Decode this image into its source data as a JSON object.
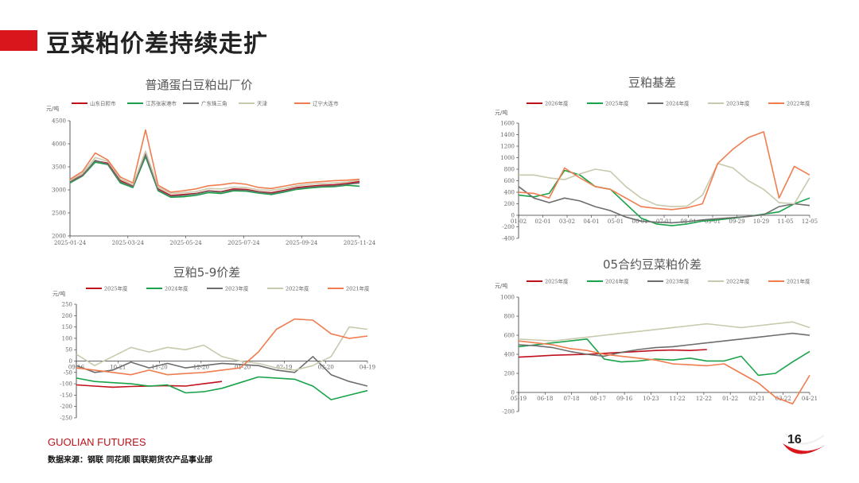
{
  "page": {
    "title": "豆菜粕价差持续走扩",
    "brand": "GUOLIAN FUTURES",
    "source": "数据来源：钢联  同花顺  国联期货农产品事业部",
    "page_number": "16"
  },
  "chart_data": [
    {
      "type": "line",
      "title": "普通蛋白豆粕出厂价",
      "unit": "元/吨",
      "ylim": [
        2000,
        4500
      ],
      "yticks": [
        2000,
        2500,
        3000,
        3500,
        4000,
        4500
      ],
      "x": [
        "2025-01-24",
        "2025-02-08",
        "2025-02-24",
        "2025-03-11",
        "2025-03-24",
        "2025-04-08",
        "2025-04-24",
        "2025-05-09",
        "2025-05-24",
        "2025-06-08",
        "2025-06-24",
        "2025-07-09",
        "2025-07-24",
        "2025-08-08",
        "2025-08-24",
        "2025-09-09",
        "2025-09-24",
        "2025-10-09",
        "2025-10-24",
        "2025-11-08",
        "2025-11-24",
        "2025-12-09",
        "2025-12-24",
        "2026-01-08"
      ],
      "xticks": [
        "2025-01-24",
        "2025-03-24",
        "2025-05-24",
        "2025-07-24",
        "2025-09-24",
        "2025-11-24"
      ],
      "grid": false,
      "legend": "top",
      "series": [
        {
          "name": "山东日照市",
          "color": "#c0101b",
          "values": [
            3180,
            3320,
            3630,
            3580,
            3200,
            3080,
            3780,
            3020,
            2880,
            2900,
            2920,
            2980,
            2960,
            3020,
            3010,
            2960,
            2940,
            2990,
            3050,
            3080,
            3100,
            3110,
            3140,
            3180
          ]
        },
        {
          "name": "江苏张家港市",
          "color": "#1aa34a",
          "values": [
            3150,
            3300,
            3600,
            3550,
            3150,
            3050,
            3720,
            2980,
            2840,
            2850,
            2880,
            2940,
            2920,
            2980,
            2970,
            2930,
            2900,
            2950,
            3010,
            3040,
            3060,
            3070,
            3100,
            3080
          ]
        },
        {
          "name": "广东珠三角",
          "color": "#6d6d6d",
          "values": [
            3170,
            3310,
            3640,
            3560,
            3180,
            3070,
            3760,
            3000,
            2860,
            2880,
            2910,
            2970,
            2950,
            3000,
            2990,
            2950,
            2920,
            2970,
            3030,
            3060,
            3080,
            3090,
            3120,
            3150
          ]
        },
        {
          "name": "天津",
          "color": "#c9c9ae",
          "values": [
            3200,
            3360,
            3700,
            3620,
            3240,
            3110,
            3840,
            3060,
            2920,
            2940,
            2960,
            3030,
            3020,
            3060,
            3050,
            3000,
            2990,
            3030,
            3090,
            3120,
            3140,
            3150,
            3170,
            3210
          ]
        },
        {
          "name": "辽宁大连市",
          "color": "#f07d4f",
          "values": [
            3230,
            3400,
            3800,
            3650,
            3280,
            3150,
            4300,
            3100,
            2950,
            2980,
            3020,
            3090,
            3110,
            3150,
            3120,
            3050,
            3030,
            3080,
            3130,
            3160,
            3180,
            3200,
            3210,
            3230
          ]
        }
      ]
    },
    {
      "type": "line",
      "title": "豆粕基差",
      "unit": "元/吨",
      "ylim": [
        -400,
        1600
      ],
      "yticks": [
        -400,
        -200,
        0,
        200,
        400,
        600,
        800,
        1000,
        1200,
        1400,
        1600
      ],
      "x": [
        "01-01",
        "01-20",
        "02-08",
        "02-27",
        "03-18",
        "04-06",
        "04-25",
        "05-14",
        "06-02",
        "06-21",
        "07-10",
        "07-29",
        "08-17",
        "09-05",
        "09-24",
        "10-13",
        "11-01",
        "11-20",
        "12-09",
        "12-28"
      ],
      "xticks": [
        "01-02",
        "02-01",
        "03-02",
        "04-01",
        "05-01",
        "06-01",
        "07-01",
        "08-01",
        "09-01",
        "09-29",
        "10-29",
        "11-05",
        "12-05"
      ],
      "grid": false,
      "legend": "top",
      "series": [
        {
          "name": "2026年度",
          "color": "#c0101b",
          "values": [
            null,
            null,
            null,
            null,
            null,
            null,
            null,
            null,
            null,
            null,
            null,
            null,
            null,
            null,
            null,
            null,
            null,
            null,
            null,
            null
          ]
        },
        {
          "name": "2025年度",
          "color": "#1aa34a",
          "values": [
            350,
            320,
            380,
            780,
            700,
            500,
            450,
            200,
            -50,
            -150,
            -180,
            -150,
            -100,
            -80,
            -50,
            -20,
            20,
            60,
            200,
            300
          ]
        },
        {
          "name": "2024年度",
          "color": "#6d6d6d",
          "values": [
            500,
            300,
            220,
            300,
            250,
            150,
            80,
            -30,
            -100,
            -120,
            -130,
            -110,
            -80,
            -60,
            -40,
            -20,
            10,
            150,
            200,
            170
          ]
        },
        {
          "name": "2023年度",
          "color": "#c9c9ae",
          "values": [
            700,
            700,
            650,
            620,
            720,
            800,
            760,
            500,
            300,
            180,
            150,
            160,
            350,
            900,
            820,
            600,
            450,
            220,
            200,
            650
          ]
        },
        {
          "name": "2022年度",
          "color": "#f07d4f",
          "values": [
            400,
            380,
            300,
            820,
            650,
            500,
            450,
            300,
            150,
            120,
            100,
            130,
            200,
            900,
            1150,
            1350,
            1450,
            300,
            850,
            700
          ]
        }
      ]
    },
    {
      "type": "line",
      "title": "豆粕5-9价差",
      "unit": "元/吨",
      "ylim": [
        -250,
        250
      ],
      "yticks": [
        -250,
        -200,
        -150,
        -100,
        -50,
        0,
        50,
        100,
        150,
        200,
        250
      ],
      "x": [
        "09-16",
        "09-30",
        "10-14",
        "10-28",
        "11-11",
        "11-25",
        "12-09",
        "12-23",
        "01-06",
        "01-20",
        "02-03",
        "02-17",
        "03-03",
        "03-17",
        "03-31",
        "04-14",
        "04-28"
      ],
      "xticks": [
        "09-16",
        "10-21",
        "11-20",
        "12-20",
        "01-20",
        "02-19",
        "03-20",
        "04-19"
      ],
      "grid": false,
      "legend": "top",
      "series": [
        {
          "name": "2025年度",
          "color": "#c0101b",
          "values": [
            -105,
            -110,
            -115,
            -112,
            -110,
            -108,
            -110,
            -100,
            -90,
            null,
            null,
            null,
            null,
            null,
            null,
            null,
            null
          ]
        },
        {
          "name": "2024年度",
          "color": "#1aa34a",
          "values": [
            -75,
            -90,
            -95,
            -100,
            -110,
            -105,
            -140,
            -135,
            -120,
            -95,
            -70,
            -75,
            -80,
            -110,
            -170,
            -150,
            -130
          ]
        },
        {
          "name": "2023年度",
          "color": "#6d6d6d",
          "values": [
            -20,
            -50,
            -40,
            -5,
            -30,
            -10,
            -30,
            -20,
            -10,
            -15,
            -20,
            -40,
            -50,
            20,
            -60,
            -90,
            -110
          ]
        },
        {
          "name": "2022年度",
          "color": "#c9c9ae",
          "values": [
            30,
            -20,
            20,
            60,
            40,
            60,
            50,
            70,
            20,
            0,
            -10,
            -30,
            -40,
            -20,
            20,
            150,
            140
          ]
        },
        {
          "name": "2021年度",
          "color": "#f07d4f",
          "values": [
            -30,
            -40,
            -50,
            -60,
            -40,
            -60,
            -55,
            -50,
            -40,
            -30,
            40,
            140,
            185,
            180,
            120,
            100,
            110
          ]
        }
      ]
    },
    {
      "type": "line",
      "title": "05合约豆菜粕价差",
      "unit": "元/吨",
      "ylim": [
        -200,
        1000
      ],
      "yticks": [
        -200,
        0,
        200,
        400,
        600,
        800,
        1000
      ],
      "x": [
        "05-19",
        "06-08",
        "06-28",
        "07-18",
        "08-07",
        "08-27",
        "09-16",
        "10-06",
        "10-26",
        "11-15",
        "12-05",
        "12-25",
        "01-14",
        "02-03",
        "02-23",
        "03-15",
        "04-04",
        "04-24"
      ],
      "xticks": [
        "05-19",
        "06-18",
        "07-18",
        "08-17",
        "09-16",
        "10-23",
        "11-22",
        "12-22",
        "01-22",
        "02-21",
        "03-22",
        "04-21"
      ],
      "grid": false,
      "legend": "top",
      "series": [
        {
          "name": "2025年度",
          "color": "#c0101b",
          "values": [
            370,
            380,
            390,
            395,
            400,
            410,
            420,
            430,
            440,
            445,
            440,
            450,
            null,
            null,
            null,
            null,
            null,
            null
          ]
        },
        {
          "name": "2024年度",
          "color": "#1aa34a",
          "values": [
            480,
            500,
            520,
            540,
            560,
            350,
            320,
            330,
            350,
            340,
            360,
            330,
            330,
            380,
            180,
            200,
            320,
            430
          ]
        },
        {
          "name": "2023年度",
          "color": "#6d6d6d",
          "values": [
            500,
            490,
            470,
            430,
            400,
            380,
            420,
            450,
            470,
            480,
            500,
            520,
            540,
            560,
            580,
            600,
            620,
            600
          ]
        },
        {
          "name": "2022年度",
          "color": "#c9c9ae",
          "values": [
            560,
            550,
            540,
            560,
            580,
            600,
            620,
            640,
            660,
            680,
            700,
            720,
            700,
            680,
            700,
            720,
            740,
            680
          ]
        },
        {
          "name": "2021年度",
          "color": "#f07d4f",
          "values": [
            540,
            520,
            500,
            460,
            440,
            400,
            380,
            360,
            340,
            300,
            290,
            280,
            300,
            200,
            100,
            -50,
            -120,
            180
          ]
        }
      ]
    }
  ]
}
